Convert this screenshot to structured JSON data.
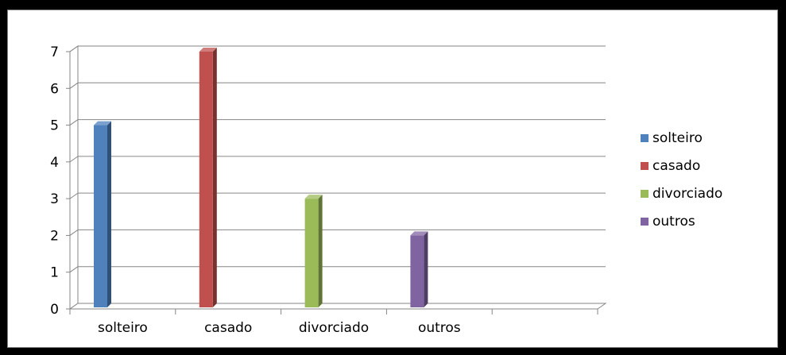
{
  "chart_data": {
    "type": "bar",
    "categories": [
      "solteiro",
      "casado",
      "divorciado",
      "outros"
    ],
    "series": [
      {
        "name": "solteiro",
        "color": "#4F81BD",
        "values": [
          5,
          null,
          null,
          null
        ]
      },
      {
        "name": "casado",
        "color": "#C0504D",
        "values": [
          null,
          7,
          null,
          null
        ]
      },
      {
        "name": "divorciado",
        "color": "#9BBB59",
        "values": [
          null,
          null,
          3,
          null
        ]
      },
      {
        "name": "outros",
        "color": "#8064A2",
        "values": [
          null,
          null,
          null,
          2
        ]
      }
    ],
    "yticks": [
      "0",
      "1",
      "2",
      "3",
      "4",
      "5",
      "6",
      "7"
    ],
    "ylim": [
      0,
      7
    ],
    "grid": true,
    "legend_position": "right",
    "style": "3d-column"
  }
}
